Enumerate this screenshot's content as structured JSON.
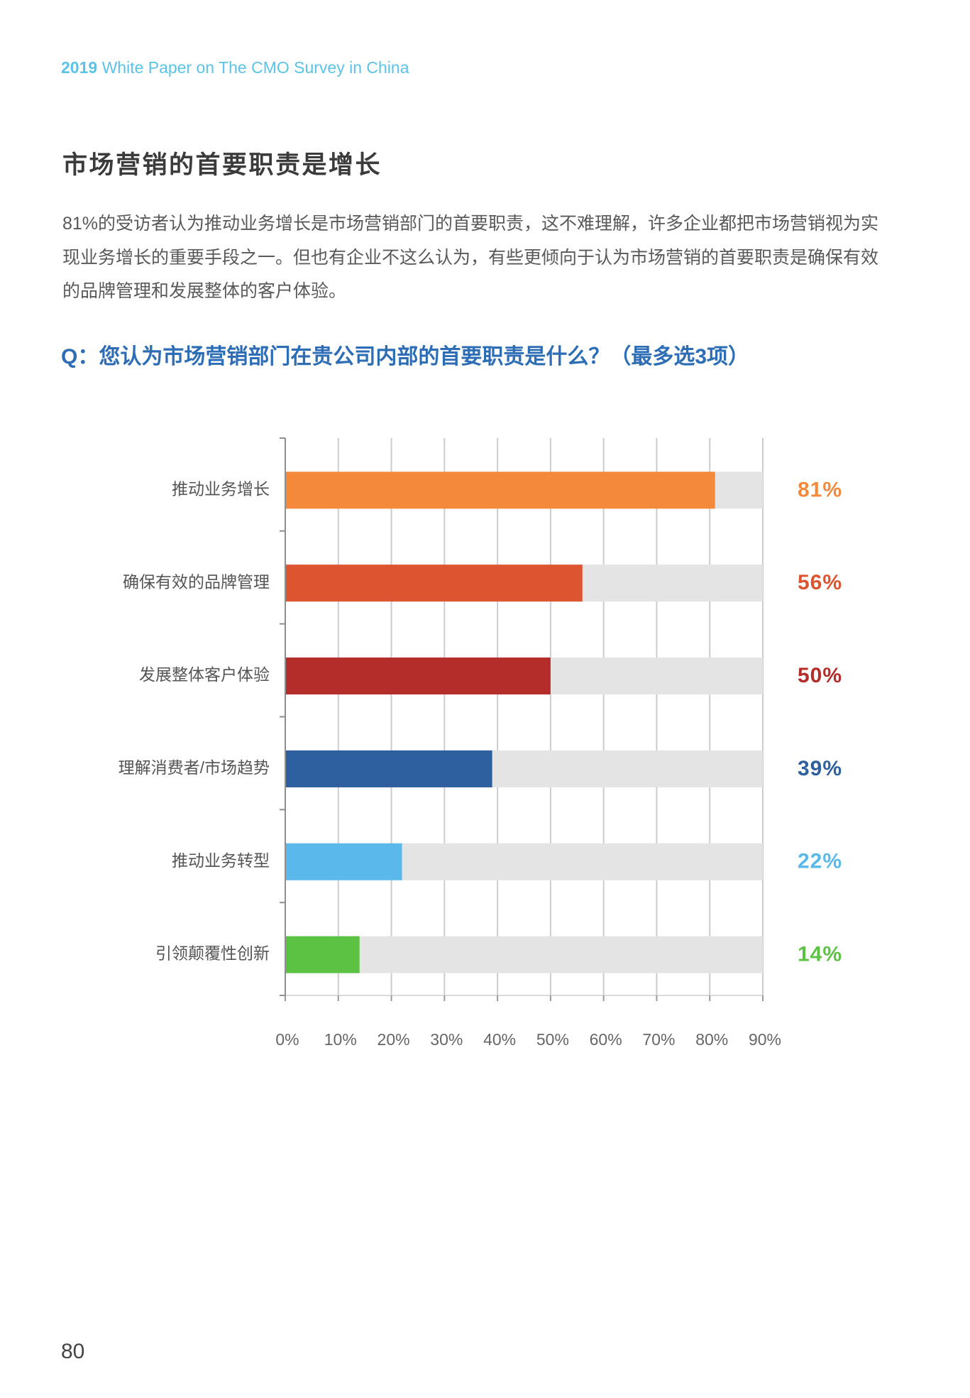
{
  "header": {
    "year": "2019",
    "title": "White Paper on The CMO Survey in China"
  },
  "section": {
    "title": "市场营销的首要职责是增长",
    "paragraph_lines": [
      "81%的受访者认为推动业务增长是市场营销部门的首要职责，这不难理解，许多企业都把市场营销视为实",
      "现业务增长的重要手段之一。但也有企业不这么认为，有些更倾向于认为市场营销的首要职责是确保有效",
      "的品牌管理和发展整体的客户体验。"
    ]
  },
  "chart_data": {
    "type": "bar",
    "orientation": "horizontal",
    "title": "Q：您认为市场营销部门在贵公司内部的首要职责是什么？（最多选3项）",
    "categories": [
      "推动业务增长",
      "确保有效的品牌管理",
      "发展整体客户体验",
      "理解消费者/市场趋势",
      "推动业务转型",
      "引领颠覆性创新"
    ],
    "values": [
      81,
      56,
      50,
      39,
      22,
      14
    ],
    "data_labels": [
      "81%",
      "56%",
      "50%",
      "39%",
      "22%",
      "14%"
    ],
    "colors": [
      "#f5893b",
      "#dc5430",
      "#b42d2b",
      "#2e5f9f",
      "#5ab9ea",
      "#5cc244"
    ],
    "track_color": "#e4e4e4",
    "xlim": [
      0,
      90
    ],
    "xticks": [
      0,
      10,
      20,
      30,
      40,
      50,
      60,
      70,
      80,
      90
    ],
    "xtick_labels": [
      "0%",
      "10%",
      "20%",
      "30%",
      "40%",
      "50%",
      "60%",
      "70%",
      "80%",
      "90%"
    ],
    "grid": true,
    "legend": "none"
  },
  "footer": {
    "page_number": "80"
  }
}
